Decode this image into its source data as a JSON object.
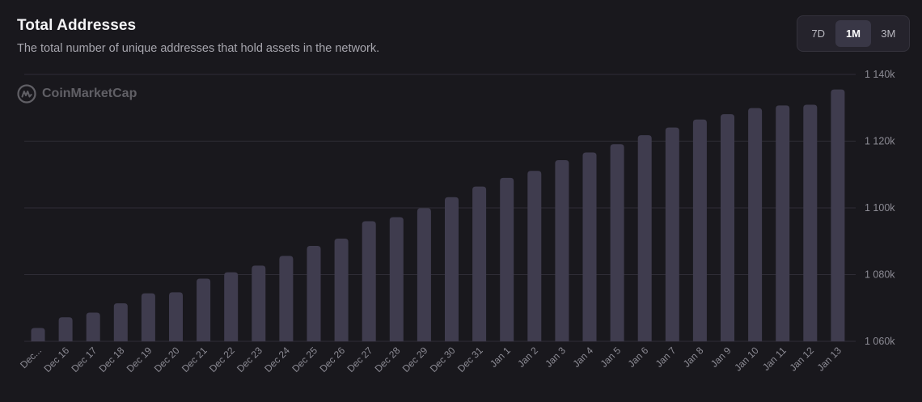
{
  "header": {
    "title": "Total Addresses",
    "subtitle": "The total number of unique addresses that hold assets in the network."
  },
  "range": {
    "options": [
      "7D",
      "1M",
      "3M"
    ],
    "selected": "1M"
  },
  "watermark": {
    "text": "CoinMarketCap",
    "icon": "coinmarketcap-logo-icon"
  },
  "colors": {
    "background": "#19181d",
    "bar": "#3f3c4e",
    "grid": "#2f2d36",
    "tick_text": "#8c8b94"
  },
  "chart_data": {
    "type": "bar",
    "title": "Total Addresses",
    "xlabel": "",
    "ylabel": "",
    "y_axis_position": "right",
    "grid": true,
    "ylim": [
      1060000,
      1140000
    ],
    "y_ticks": [
      1060000,
      1080000,
      1100000,
      1120000,
      1140000
    ],
    "y_tick_labels": [
      "1 060k",
      "1 080k",
      "1 100k",
      "1 120k",
      "1 140k"
    ],
    "categories": [
      "Dec...",
      "Dec 16",
      "Dec 17",
      "Dec 18",
      "Dec 19",
      "Dec 20",
      "Dec 21",
      "Dec 22",
      "Dec 23",
      "Dec 24",
      "Dec 25",
      "Dec 26",
      "Dec 27",
      "Dec 28",
      "Dec 29",
      "Dec 30",
      "Dec 31",
      "Jan 1",
      "Jan 2",
      "Jan 3",
      "Jan 4",
      "Jan 5",
      "Jan 6",
      "Jan 7",
      "Jan 8",
      "Jan 9",
      "Jan 10",
      "Jan 11",
      "Jan 12",
      "Jan 13"
    ],
    "values": [
      1064000,
      1067200,
      1068600,
      1071400,
      1074400,
      1074700,
      1078800,
      1080700,
      1082700,
      1085600,
      1088600,
      1090800,
      1096000,
      1097200,
      1099900,
      1103200,
      1106400,
      1109000,
      1111100,
      1114300,
      1116600,
      1119100,
      1121800,
      1124100,
      1126500,
      1128100,
      1129900,
      1130700,
      1130900,
      1135500
    ]
  }
}
